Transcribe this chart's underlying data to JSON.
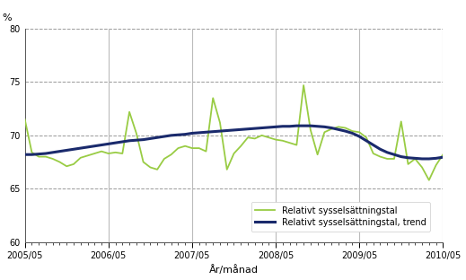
{
  "ylabel": "%",
  "xlabel": "År/månad",
  "ylim": [
    60,
    80
  ],
  "yticks": [
    60,
    65,
    70,
    75,
    80
  ],
  "legend_labels": [
    "Relativt sysselsättningstal",
    "Relativt sysselsättningstal, trend"
  ],
  "line_color_raw": "#99cc44",
  "line_color_trend": "#1a2a6c",
  "background_color": "#ffffff",
  "plot_bg": "#ffffff",
  "vline_color": "#bbbbbb",
  "grid_color": "#999999",
  "xtick_labels": [
    "2005/05",
    "2006/05",
    "2007/05",
    "2008/05",
    "2009/05",
    "2010/05"
  ],
  "xtick_positions": [
    0,
    12,
    24,
    36,
    48,
    60
  ],
  "raw_data": [
    71.5,
    68.4,
    68.0,
    68.0,
    67.8,
    67.5,
    67.1,
    67.3,
    67.9,
    68.1,
    68.3,
    68.5,
    68.3,
    68.4,
    68.3,
    72.2,
    70.2,
    67.5,
    67.0,
    66.8,
    67.8,
    68.2,
    68.8,
    69.0,
    68.8,
    68.8,
    68.5,
    73.5,
    71.2,
    66.8,
    68.3,
    69.0,
    69.8,
    69.7,
    70.0,
    69.8,
    69.6,
    69.5,
    69.3,
    69.1,
    74.7,
    70.5,
    68.2,
    70.3,
    70.6,
    70.8,
    70.7,
    70.4,
    70.3,
    69.8,
    68.3,
    68.0,
    67.8,
    67.8,
    71.3,
    67.3,
    67.8,
    67.0,
    65.8,
    67.2,
    68.2
  ],
  "trend_data": [
    68.2,
    68.2,
    68.25,
    68.3,
    68.4,
    68.5,
    68.6,
    68.7,
    68.8,
    68.9,
    69.0,
    69.1,
    69.2,
    69.3,
    69.4,
    69.5,
    69.55,
    69.6,
    69.7,
    69.8,
    69.9,
    70.0,
    70.05,
    70.1,
    70.2,
    70.25,
    70.3,
    70.35,
    70.4,
    70.45,
    70.5,
    70.55,
    70.6,
    70.65,
    70.7,
    70.75,
    70.8,
    70.85,
    70.85,
    70.9,
    70.9,
    70.9,
    70.85,
    70.8,
    70.7,
    70.55,
    70.4,
    70.2,
    69.9,
    69.5,
    69.1,
    68.7,
    68.4,
    68.2,
    68.0,
    67.9,
    67.85,
    67.8,
    67.8,
    67.85,
    67.95
  ]
}
